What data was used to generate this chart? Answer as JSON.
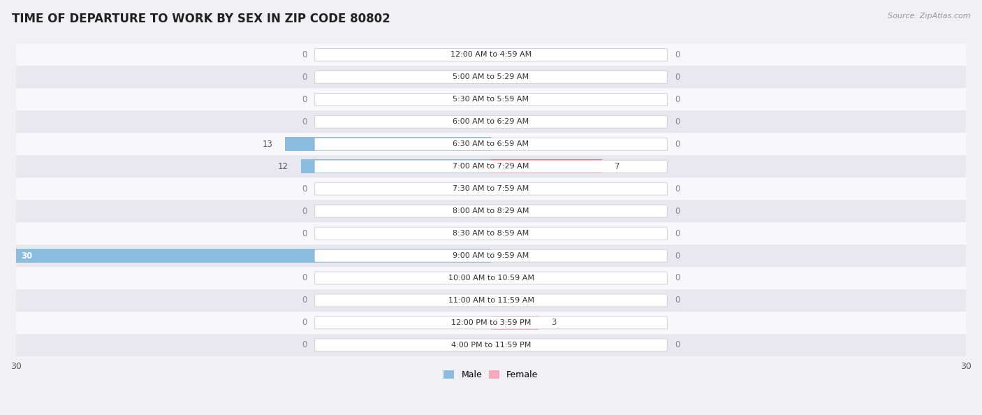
{
  "title": "TIME OF DEPARTURE TO WORK BY SEX IN ZIP CODE 80802",
  "source": "Source: ZipAtlas.com",
  "categories": [
    "12:00 AM to 4:59 AM",
    "5:00 AM to 5:29 AM",
    "5:30 AM to 5:59 AM",
    "6:00 AM to 6:29 AM",
    "6:30 AM to 6:59 AM",
    "7:00 AM to 7:29 AM",
    "7:30 AM to 7:59 AM",
    "8:00 AM to 8:29 AM",
    "8:30 AM to 8:59 AM",
    "9:00 AM to 9:59 AM",
    "10:00 AM to 10:59 AM",
    "11:00 AM to 11:59 AM",
    "12:00 PM to 3:59 PM",
    "4:00 PM to 11:59 PM"
  ],
  "male_values": [
    0,
    0,
    0,
    0,
    13,
    12,
    0,
    0,
    0,
    30,
    0,
    0,
    0,
    0
  ],
  "female_values": [
    0,
    0,
    0,
    0,
    0,
    7,
    0,
    0,
    0,
    0,
    0,
    0,
    3,
    0
  ],
  "male_color": "#8bbcde",
  "female_color": "#f4a8bc",
  "female_color_bright": "#e8607a",
  "axis_max": 30,
  "bg_color": "#f0f0f5",
  "row_bg_even": "#f7f7fc",
  "row_bg_odd": "#e8e8f0",
  "label_color": "#555555",
  "title_color": "#222222",
  "legend_male_color": "#8bbcde",
  "legend_female_color": "#f4a8bc",
  "value_label_color": "#555555",
  "zero_label_color": "#888888"
}
